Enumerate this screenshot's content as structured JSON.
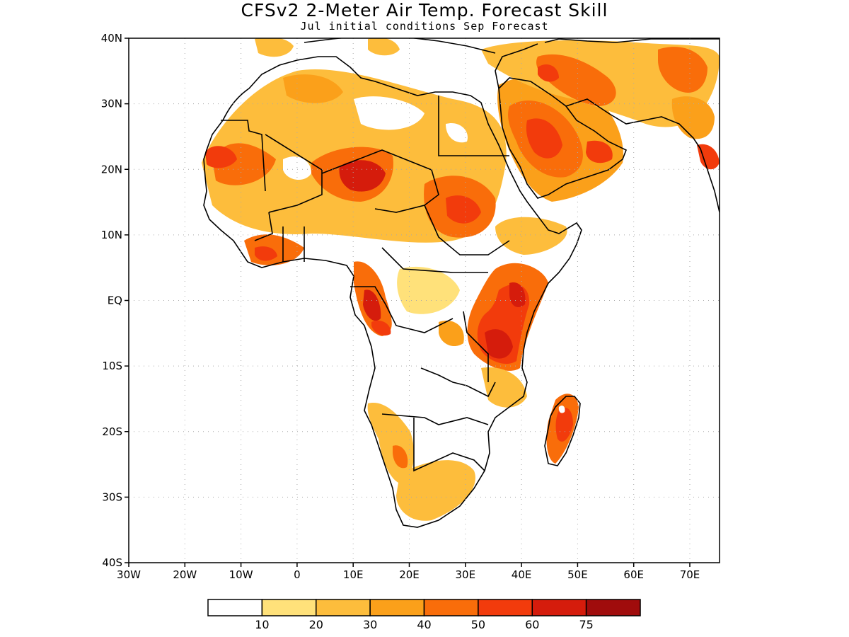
{
  "title": "CFSv2 2-Meter Air Temp. Forecast Skill",
  "subtitle": "Jul initial conditions   Sep Forecast",
  "y_axis_labels": [
    "40N",
    "30N",
    "20N",
    "10N",
    "EQ",
    "10S",
    "20S",
    "30S",
    "40S"
  ],
  "x_axis_labels": [
    "30W",
    "20W",
    "10W",
    "0",
    "10E",
    "20E",
    "30E",
    "40E",
    "50E",
    "60E",
    "70E"
  ],
  "colorbar": {
    "colors": [
      "#ffffff",
      "#ffe17a",
      "#fdbd3c",
      "#fba01a",
      "#f96d0a",
      "#f23b0c",
      "#d51c0c",
      "#a00c0c"
    ],
    "labels": [
      "10",
      "20",
      "30",
      "40",
      "50",
      "60",
      "75"
    ]
  }
}
